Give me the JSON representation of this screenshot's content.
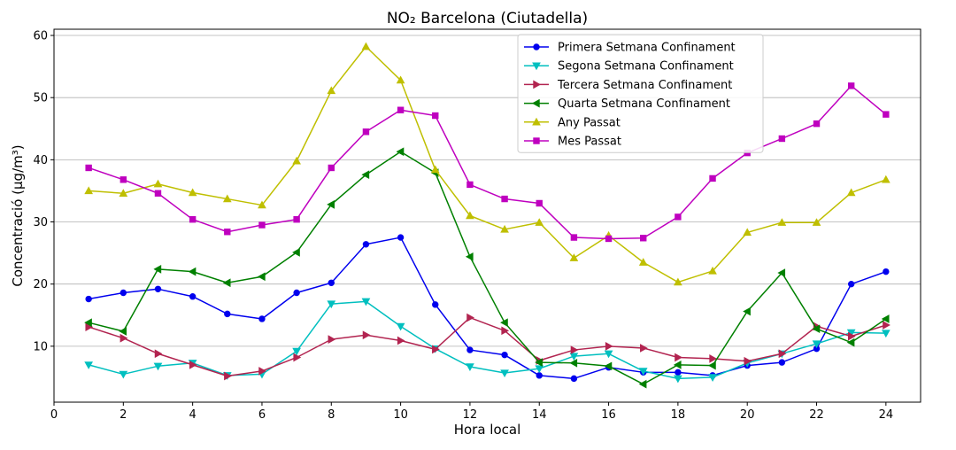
{
  "chart_data": {
    "type": "line",
    "title": "NO₂ Barcelona (Ciutadella)",
    "xlabel": "Hora local",
    "ylabel": "Concentració (µg/m³)",
    "xlim": [
      0,
      25
    ],
    "ylim": [
      1,
      61
    ],
    "xticks": [
      0,
      2,
      4,
      6,
      8,
      10,
      12,
      14,
      16,
      18,
      20,
      22,
      24
    ],
    "yticks": [
      10,
      20,
      30,
      40,
      50,
      60
    ],
    "grid": "horizontal",
    "legend_position": "top-center",
    "x": [
      1,
      2,
      3,
      4,
      5,
      6,
      7,
      8,
      9,
      10,
      11,
      12,
      13,
      14,
      15,
      16,
      17,
      18,
      19,
      20,
      21,
      22,
      23,
      24
    ],
    "series": [
      {
        "name": "Primera Setmana Confinament",
        "color": "#0000ee",
        "marker": "circle",
        "values": [
          17.6,
          18.6,
          19.2,
          18.0,
          15.2,
          14.4,
          18.6,
          20.2,
          26.4,
          27.5,
          16.7,
          9.4,
          8.6,
          5.3,
          4.8,
          6.6,
          5.8,
          5.8,
          5.3,
          6.9,
          7.4,
          9.6,
          20.0,
          22.0
        ]
      },
      {
        "name": "Segona Setmana Confinament",
        "color": "#00bfbf",
        "marker": "triangle-down",
        "values": [
          7.0,
          5.5,
          6.8,
          7.3,
          5.3,
          5.5,
          9.2,
          16.8,
          17.2,
          13.2,
          9.6,
          6.7,
          5.7,
          6.4,
          8.4,
          8.8,
          6.0,
          4.8,
          5.0,
          7.3,
          8.8,
          10.4,
          12.2,
          12.1
        ]
      },
      {
        "name": "Tercera Setmana Confinament",
        "color": "#b22450",
        "marker": "triangle-right",
        "values": [
          13.1,
          11.3,
          8.8,
          7.0,
          5.2,
          6.0,
          8.2,
          11.1,
          11.8,
          10.9,
          9.5,
          14.6,
          12.5,
          7.7,
          9.4,
          10.0,
          9.7,
          8.2,
          8.0,
          7.6,
          8.8,
          13.2,
          11.6,
          13.4
        ]
      },
      {
        "name": "Quarta Setmana Confinament",
        "color": "#008000",
        "marker": "triangle-left",
        "values": [
          13.8,
          12.4,
          22.4,
          22.0,
          20.2,
          21.2,
          25.1,
          32.8,
          37.6,
          41.3,
          37.9,
          24.4,
          13.8,
          7.4,
          7.3,
          6.8,
          3.9,
          7.0,
          6.9,
          15.6,
          21.8,
          12.8,
          10.6,
          14.4
        ]
      },
      {
        "name": "Any Passat",
        "color": "#bfbf00",
        "marker": "triangle-up",
        "values": [
          35.0,
          34.6,
          36.1,
          34.7,
          33.7,
          32.7,
          39.8,
          51.1,
          58.2,
          52.8,
          38.4,
          31.0,
          28.8,
          29.9,
          24.2,
          27.8,
          23.5,
          20.3,
          22.1,
          28.3,
          29.9,
          29.9,
          34.7,
          36.8
        ]
      },
      {
        "name": "Mes Passat",
        "color": "#bf00bf",
        "marker": "square",
        "values": [
          38.7,
          36.8,
          34.6,
          30.4,
          28.4,
          29.5,
          30.4,
          38.7,
          44.5,
          48.0,
          47.1,
          36.0,
          33.7,
          33.0,
          27.5,
          27.3,
          27.4,
          30.8,
          37.0,
          41.1,
          43.4,
          45.8,
          51.9,
          47.3
        ]
      }
    ]
  }
}
